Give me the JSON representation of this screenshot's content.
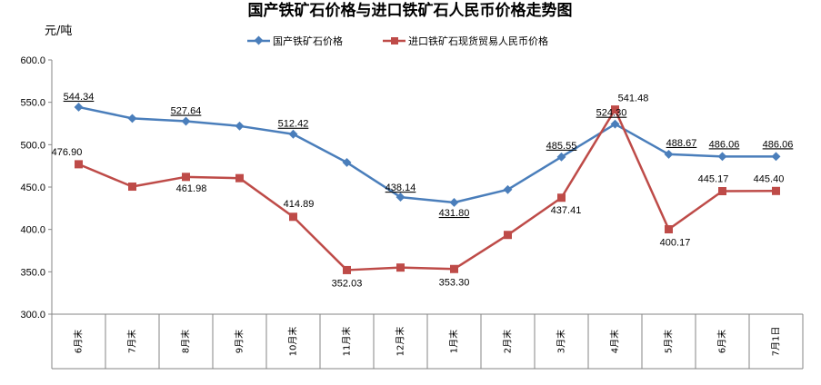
{
  "chart_data": {
    "type": "line",
    "title": "国产铁矿石价格与进口铁矿石人民币价格走势图",
    "ylabel": "元/吨",
    "xlabel": "",
    "ylim": [
      300,
      600
    ],
    "yticks": [
      "300.0",
      "350.0",
      "400.0",
      "450.0",
      "500.0",
      "550.0",
      "600.0"
    ],
    "grid": false,
    "legend_position": "top-center",
    "categories": [
      "6月末",
      "7月末",
      "8月末",
      "9月末",
      "10月末",
      "11月末",
      "12月末",
      "1月末",
      "2月末",
      "3月末",
      "4月末",
      "5月末",
      "6月末",
      "7月1日"
    ],
    "series": [
      {
        "name": "国产铁矿石价格",
        "color": "#4a7ebb",
        "marker": "diamond",
        "values": [
          544.34,
          531.0,
          527.64,
          522.0,
          512.42,
          479.0,
          438.14,
          431.8,
          447.0,
          485.55,
          524.3,
          488.67,
          486.06,
          486.06
        ],
        "labels": [
          "544.34",
          "",
          "527.64",
          "",
          "512.42",
          "",
          "438.14",
          "431.80",
          "",
          "485.55",
          "524.30",
          "488.67",
          "486.06",
          "486.06"
        ]
      },
      {
        "name": "进口铁矿石现货贸易人民币价格",
        "color": "#be4b48",
        "marker": "square",
        "values": [
          476.9,
          450.5,
          461.98,
          460.5,
          414.89,
          352.03,
          355.0,
          353.3,
          393.5,
          437.41,
          541.48,
          400.17,
          445.17,
          445.4
        ],
        "labels": [
          "476.90",
          "",
          "461.98",
          "",
          "414.89",
          "352.03",
          "",
          "353.30",
          "",
          "437.41",
          "541.48",
          "400.17",
          "445.17",
          "445.40"
        ]
      }
    ]
  }
}
